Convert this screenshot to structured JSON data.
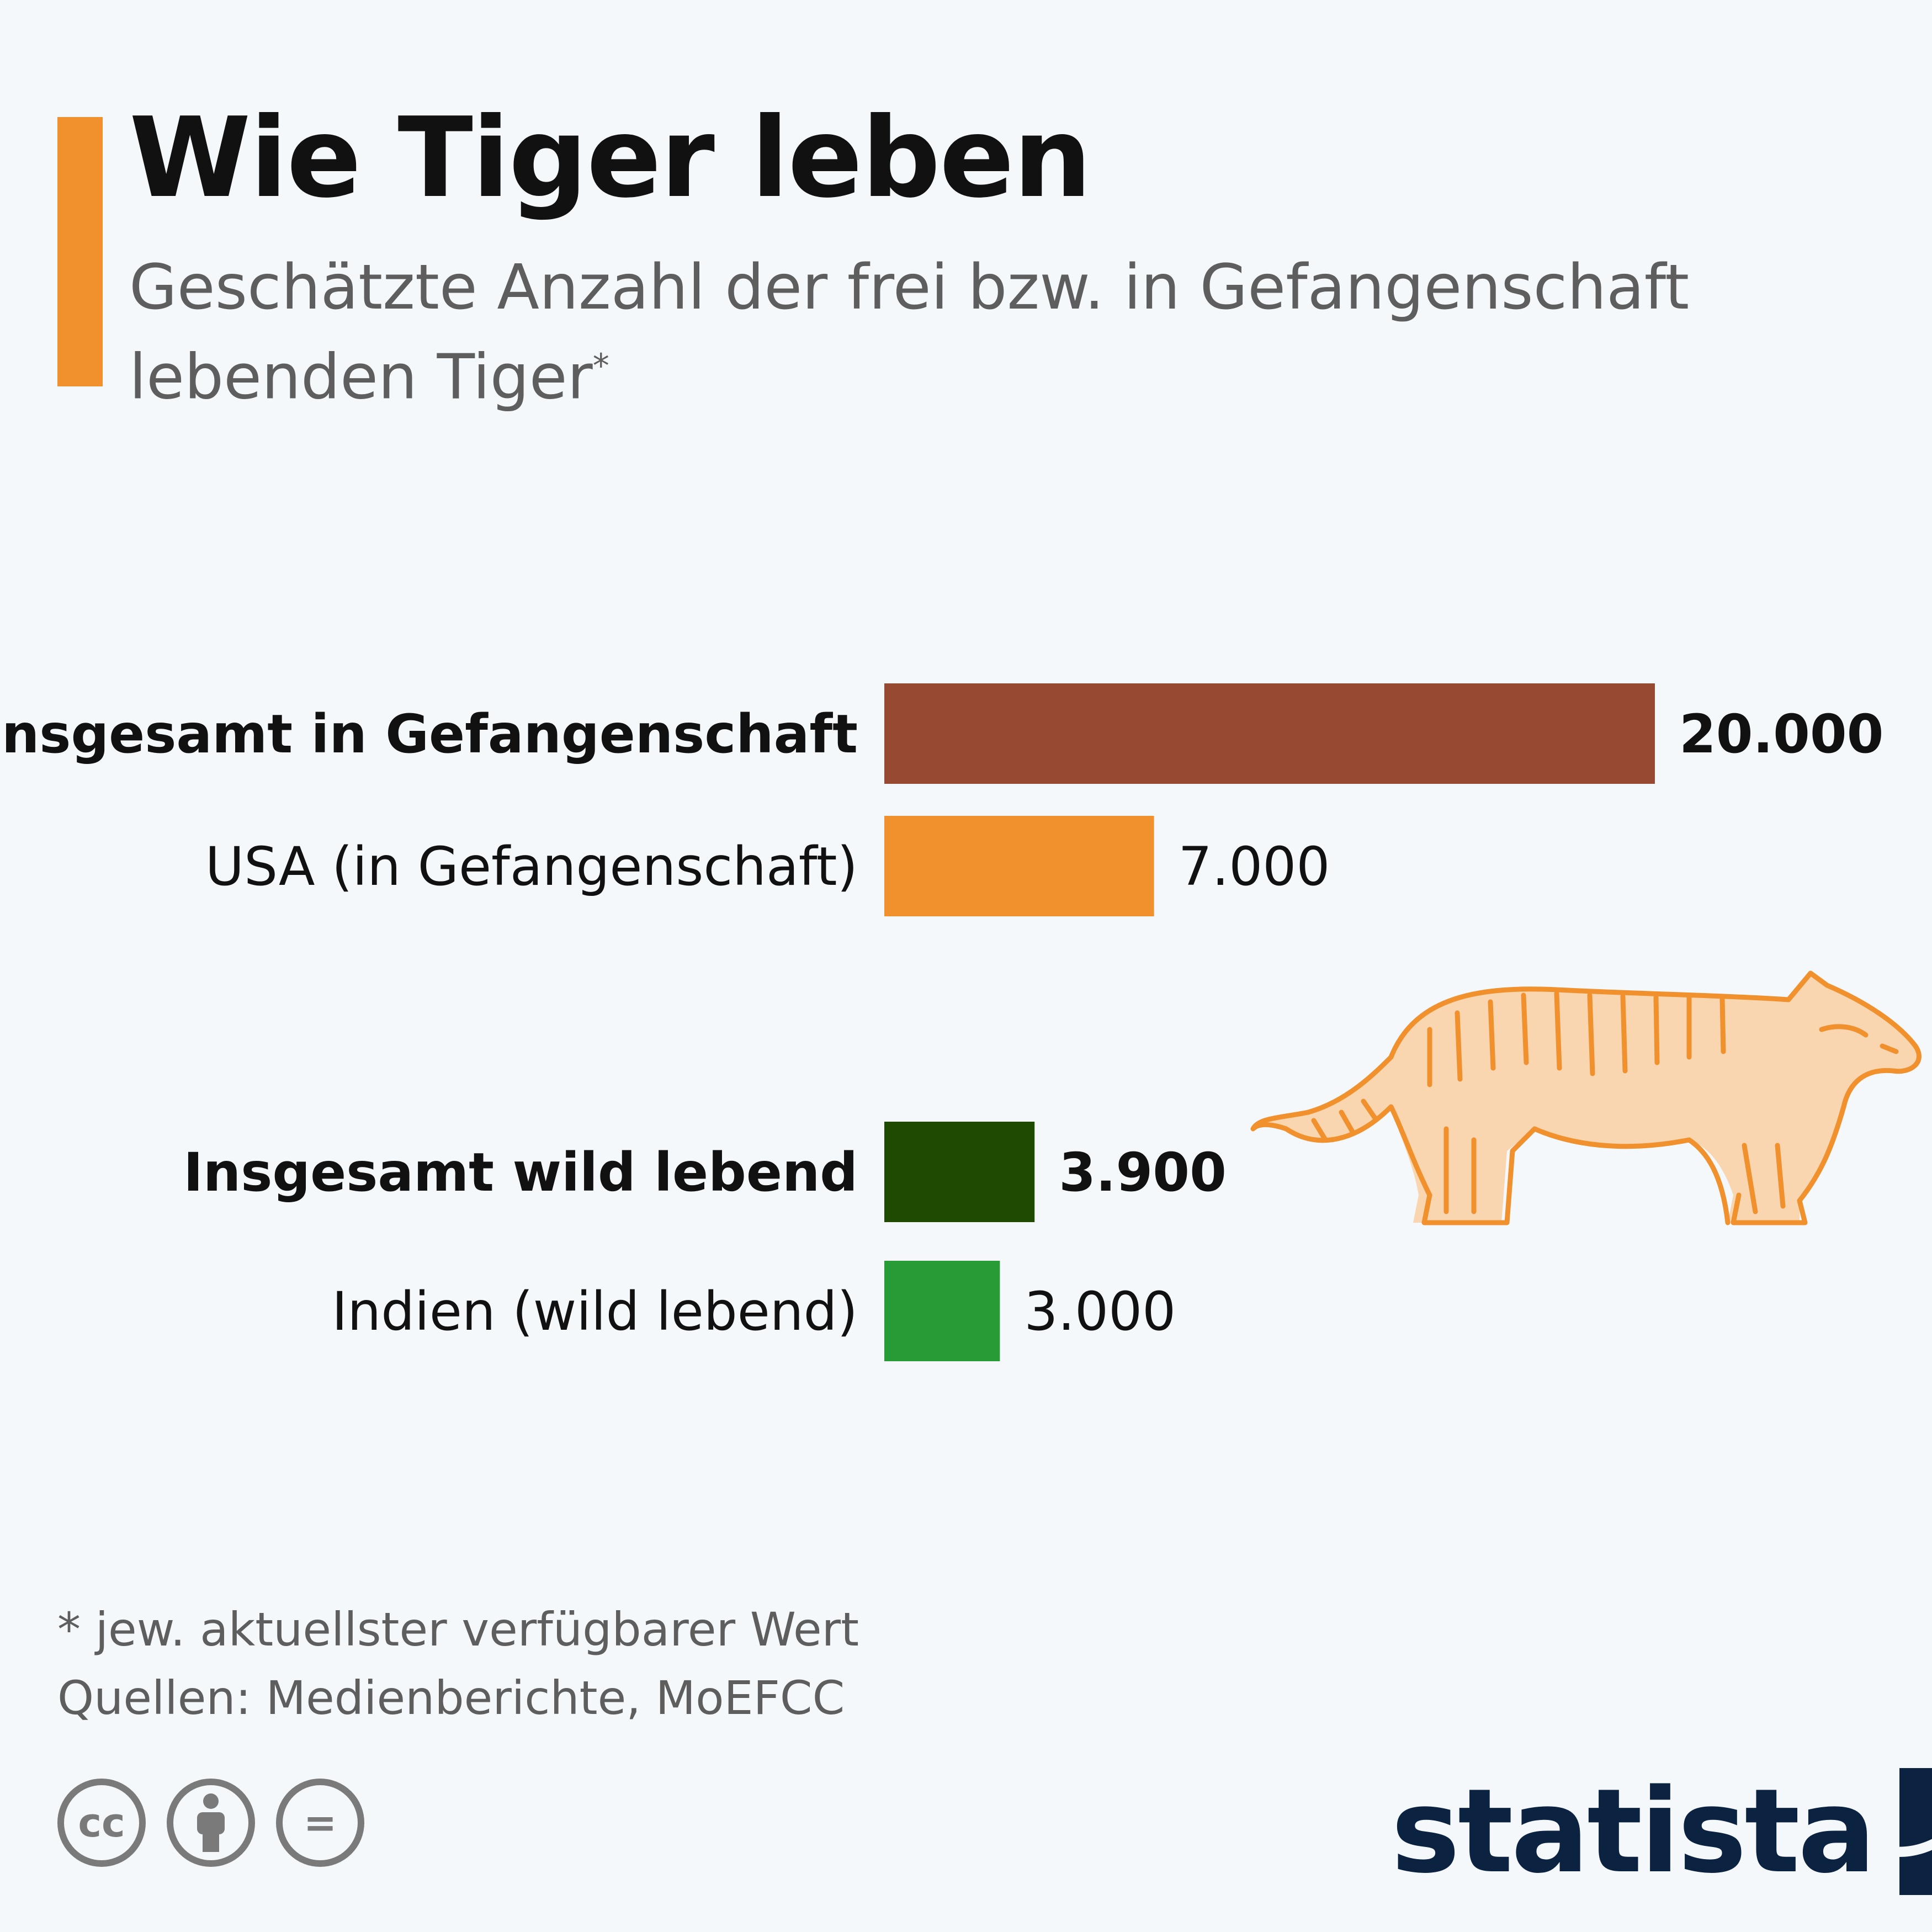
{
  "header": {
    "title": "Wie Tiger leben",
    "subtitle": "Geschätzte Anzahl der frei bzw. in Gefangenschaft lebenden Tiger",
    "subtitle_marker": "*"
  },
  "chart_data": {
    "type": "bar",
    "orientation": "horizontal",
    "title": "Wie Tiger leben",
    "subtitle": "Geschätzte Anzahl der frei bzw. in Gefangenschaft lebenden Tiger*",
    "categories": [
      "Insgesamt in Gefangenschaft",
      "USA (in Gefangenschaft)",
      "Insgesamt wild lebend",
      "Indien (wild lebend)"
    ],
    "values": [
      20000,
      7000,
      3900,
      3000
    ],
    "value_labels": [
      "20.000",
      "7.000",
      "3.900",
      "3.000"
    ],
    "bold": [
      true,
      false,
      true,
      false
    ],
    "colors": [
      "#974a32",
      "#f0912e",
      "#1e4a02",
      "#279c35"
    ],
    "xlim": [
      0,
      20000
    ],
    "grid": false,
    "legend": "none"
  },
  "illustration": {
    "icon": "tiger-icon",
    "color": "#f0912e"
  },
  "footer": {
    "note": "* jew. aktuellster verfügbarer Wert",
    "source": "Quellen: Medienberichte, MoEFCC",
    "license_icons": [
      "cc-icon",
      "by-icon",
      "nd-icon"
    ],
    "cc_glyph": "cc",
    "nd_glyph": "=",
    "logo": "statista"
  }
}
